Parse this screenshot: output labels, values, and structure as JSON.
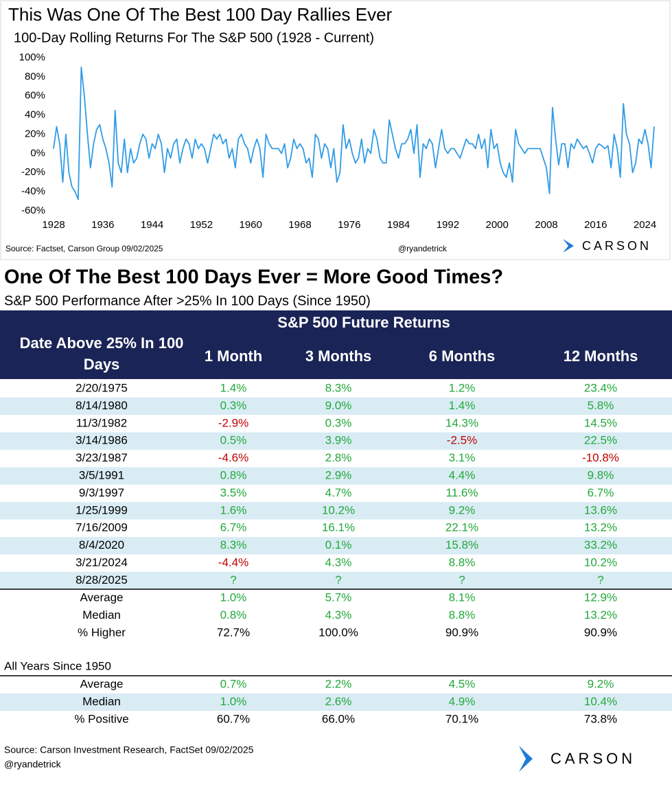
{
  "brand": "CARSON",
  "chart_data": {
    "type": "line",
    "title": "This Was One Of The Best 100 Day Rallies Ever",
    "subtitle": "100-Day Rolling Returns For The S&P 500 (1928 - Current)",
    "source": "Source: Factset, Carson Group 09/02/2025",
    "handle": "@ryandetrick",
    "x": [
      1928,
      1928.5,
      1929,
      1929.5,
      1930,
      1930.5,
      1931,
      1931.5,
      1932,
      1932.5,
      1933,
      1933.5,
      1934,
      1934.5,
      1935,
      1935.5,
      1936,
      1936.5,
      1937,
      1937.5,
      1938,
      1938.5,
      1939,
      1939.5,
      1940,
      1940.5,
      1941,
      1941.5,
      1942,
      1942.5,
      1943,
      1943.5,
      1944,
      1944.5,
      1945,
      1945.5,
      1946,
      1946.5,
      1947,
      1947.5,
      1948,
      1948.5,
      1949,
      1949.5,
      1950,
      1950.5,
      1951,
      1951.5,
      1952,
      1952.5,
      1953,
      1953.5,
      1954,
      1954.5,
      1955,
      1955.5,
      1956,
      1956.5,
      1957,
      1957.5,
      1958,
      1958.5,
      1959,
      1959.5,
      1960,
      1960.5,
      1961,
      1961.5,
      1962,
      1962.5,
      1963,
      1963.5,
      1964,
      1964.5,
      1965,
      1965.5,
      1966,
      1966.5,
      1967,
      1967.5,
      1968,
      1968.5,
      1969,
      1969.5,
      1970,
      1970.5,
      1971,
      1971.5,
      1972,
      1972.5,
      1973,
      1973.5,
      1974,
      1974.5,
      1975,
      1975.5,
      1976,
      1976.5,
      1977,
      1977.5,
      1978,
      1978.5,
      1979,
      1979.5,
      1980,
      1980.5,
      1981,
      1981.5,
      1982,
      1982.5,
      1983,
      1983.5,
      1984,
      1984.5,
      1985,
      1985.5,
      1986,
      1986.5,
      1987,
      1987.5,
      1988,
      1988.5,
      1989,
      1989.5,
      1990,
      1990.5,
      1991,
      1991.5,
      1992,
      1992.5,
      1993,
      1993.5,
      1994,
      1994.5,
      1995,
      1995.5,
      1996,
      1996.5,
      1997,
      1997.5,
      1998,
      1998.5,
      1999,
      1999.5,
      2000,
      2000.5,
      2001,
      2001.5,
      2002,
      2002.5,
      2003,
      2003.5,
      2004,
      2004.5,
      2005,
      2005.5,
      2006,
      2006.5,
      2007,
      2007.5,
      2008,
      2008.5,
      2009,
      2009.5,
      2010,
      2010.5,
      2011,
      2011.5,
      2012,
      2012.5,
      2013,
      2013.5,
      2014,
      2014.5,
      2015,
      2015.5,
      2016,
      2016.5,
      2017,
      2017.5,
      2018,
      2018.5,
      2019,
      2019.5,
      2020,
      2020.5,
      2021,
      2021.5,
      2022,
      2022.5,
      2023,
      2023.5,
      2024,
      2024.5,
      2025,
      2025.5
    ],
    "series": [
      {
        "name": "100-Day Rolling Return",
        "color": "#2f9be6",
        "values": [
          5,
          28,
          10,
          -30,
          20,
          -20,
          -35,
          -40,
          -48,
          90,
          60,
          20,
          -15,
          10,
          25,
          30,
          15,
          5,
          -10,
          -35,
          45,
          -10,
          -20,
          15,
          -20,
          5,
          -10,
          -5,
          10,
          20,
          15,
          -5,
          10,
          5,
          20,
          10,
          -20,
          5,
          -5,
          10,
          15,
          -10,
          5,
          15,
          10,
          -5,
          15,
          5,
          10,
          5,
          -10,
          5,
          20,
          15,
          20,
          10,
          15,
          -5,
          5,
          -15,
          15,
          20,
          10,
          5,
          -10,
          5,
          15,
          5,
          -25,
          20,
          10,
          5,
          5,
          5,
          0,
          10,
          -15,
          -5,
          15,
          5,
          10,
          5,
          -10,
          -5,
          -25,
          20,
          15,
          -5,
          10,
          5,
          -15,
          5,
          -30,
          -20,
          30,
          5,
          15,
          0,
          -10,
          -5,
          15,
          -10,
          5,
          0,
          25,
          15,
          -5,
          -10,
          -10,
          35,
          20,
          5,
          -5,
          10,
          10,
          15,
          25,
          0,
          30,
          -25,
          10,
          5,
          15,
          10,
          -15,
          5,
          25,
          5,
          0,
          5,
          5,
          0,
          -5,
          5,
          15,
          10,
          10,
          5,
          20,
          5,
          15,
          -15,
          25,
          5,
          10,
          -10,
          -20,
          -25,
          -10,
          -30,
          25,
          10,
          5,
          0,
          5,
          5,
          5,
          5,
          5,
          -5,
          -15,
          -42,
          48,
          15,
          -12,
          10,
          10,
          -15,
          10,
          5,
          15,
          10,
          5,
          8,
          0,
          -10,
          5,
          10,
          8,
          5,
          8,
          -15,
          20,
          5,
          -25,
          52,
          20,
          10,
          -20,
          -10,
          15,
          10,
          25,
          10,
          -15,
          28
        ]
      }
    ],
    "xlim": [
      1928,
      2026.5
    ],
    "xticks": [
      1928,
      1936,
      1944,
      1952,
      1960,
      1968,
      1976,
      1984,
      1992,
      2000,
      2008,
      2016,
      2024
    ],
    "ylim": [
      -60,
      100
    ],
    "yticks": [
      {
        "value": -60,
        "label": "-60%"
      },
      {
        "value": -40,
        "label": "-40%"
      },
      {
        "value": -20,
        "label": "-20%"
      },
      {
        "value": 0,
        "label": "0%"
      },
      {
        "value": 20,
        "label": "20%"
      },
      {
        "value": 40,
        "label": "40%"
      },
      {
        "value": 60,
        "label": "60%"
      },
      {
        "value": 80,
        "label": "80%"
      },
      {
        "value": 100,
        "label": "100%"
      }
    ],
    "grid": false
  },
  "table": {
    "title": "One Of The Best 100 Days Ever = More Good Times?",
    "subtitle": "S&P 500 Performance After >25% In 100 Days (Since 1950)",
    "group_header": "S&P 500 Future Returns",
    "columns": [
      "Date Above 25% In 100 Days",
      "1 Month",
      "3 Months",
      "6 Months",
      "12 Months"
    ],
    "rows": [
      [
        "2/20/1975",
        "1.4%",
        "8.3%",
        "1.2%",
        "23.4%"
      ],
      [
        "8/14/1980",
        "0.3%",
        "9.0%",
        "1.4%",
        "5.8%"
      ],
      [
        "11/3/1982",
        "-2.9%",
        "0.3%",
        "14.3%",
        "14.5%"
      ],
      [
        "3/14/1986",
        "0.5%",
        "3.9%",
        "-2.5%",
        "22.5%"
      ],
      [
        "3/23/1987",
        "-4.6%",
        "2.8%",
        "3.1%",
        "-10.8%"
      ],
      [
        "3/5/1991",
        "0.8%",
        "2.9%",
        "4.4%",
        "9.8%"
      ],
      [
        "9/3/1997",
        "3.5%",
        "4.7%",
        "11.6%",
        "6.7%"
      ],
      [
        "1/25/1999",
        "1.6%",
        "10.2%",
        "9.2%",
        "13.6%"
      ],
      [
        "7/16/2009",
        "6.7%",
        "16.1%",
        "22.1%",
        "13.2%"
      ],
      [
        "8/4/2020",
        "8.3%",
        "0.1%",
        "15.8%",
        "33.2%"
      ],
      [
        "3/21/2024",
        "-4.4%",
        "4.3%",
        "8.8%",
        "10.2%"
      ],
      [
        "8/28/2025",
        "?",
        "?",
        "?",
        "?"
      ]
    ],
    "summary": [
      [
        "Average",
        "1.0%",
        "5.7%",
        "8.1%",
        "12.9%"
      ],
      [
        "Median",
        "0.8%",
        "4.3%",
        "8.8%",
        "13.2%"
      ],
      [
        "% Higher",
        "72.7%",
        "100.0%",
        "90.9%",
        "90.9%"
      ]
    ],
    "all_years_label": "All Years Since 1950",
    "all_years": [
      [
        "Average",
        "0.7%",
        "2.2%",
        "4.5%",
        "9.2%"
      ],
      [
        "Median",
        "1.0%",
        "2.6%",
        "4.9%",
        "10.4%"
      ],
      [
        "% Positive",
        "60.7%",
        "66.0%",
        "70.1%",
        "73.8%"
      ]
    ],
    "source": "Source: Carson Investment Research, FactSet 09/02/2025",
    "handle": "@ryandetrick"
  }
}
